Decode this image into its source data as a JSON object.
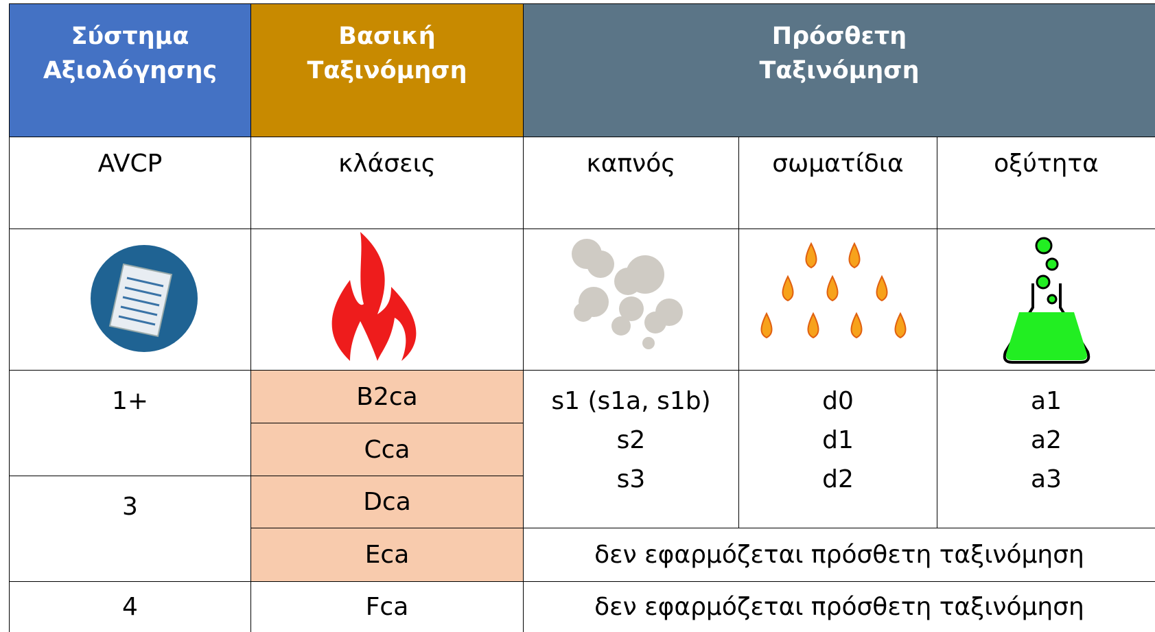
{
  "header": {
    "rating_system": "Σύστημα Αξιολόγησης",
    "basic_classification": "Βασική Ταξινόμηση",
    "additional_classification": "Πρόσθετη Ταξινόμηση"
  },
  "subheader": [
    "AVCP",
    "κλάσεις",
    "καπνός",
    "σωματίδια",
    "οξύτητα"
  ],
  "avcp": [
    "1+",
    "3",
    "4"
  ],
  "classes": [
    "B2ca",
    "Cca",
    "Dca",
    "Eca",
    "Fca"
  ],
  "smoke": [
    "s1 (s1a, s1b)",
    "s2",
    "s3"
  ],
  "droplets": [
    "d0",
    "d1",
    "d2"
  ],
  "acidity": [
    "a1",
    "a2",
    "a3"
  ],
  "not_applicable": [
    "δεν εφαρμόζεται πρόσθετη ταξινόμηση",
    "δεν εφαρμόζεται πρόσθετη ταξινόμηση"
  ]
}
